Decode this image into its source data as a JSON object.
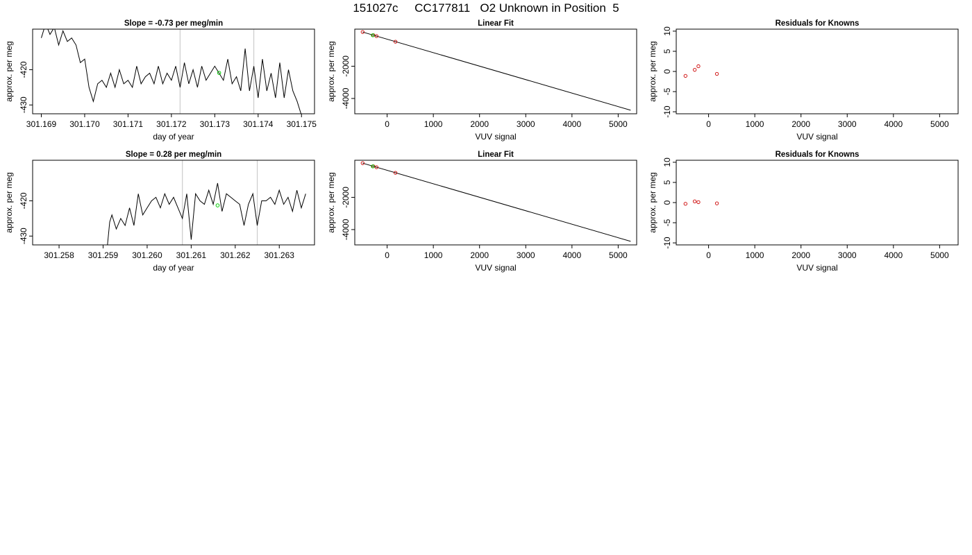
{
  "title": "151027c     CC177811   O2 Unknown in Position  5",
  "colors": {
    "line": "#000000",
    "known": "#cc0000",
    "unknown": "#00cc00",
    "marker": "#cccccc"
  },
  "chart_data": [
    {
      "id": "ts1",
      "type": "line",
      "title": "Slope =  -0.73  per meg/min",
      "xlabel": "day of year",
      "ylabel": "approx. per meg",
      "xlim": [
        301.1688,
        301.1753
      ],
      "ylim": [
        -432.5,
        -408.5
      ],
      "xticks": [
        301.169,
        301.17,
        301.171,
        301.172,
        301.173,
        301.174,
        301.175
      ],
      "xtick_labels": [
        "301.169",
        "301.170",
        "301.171",
        "301.172",
        "301.173",
        "301.174",
        "301.175"
      ],
      "yticks": [
        -420,
        -430
      ],
      "ytick_labels": [
        "-420",
        "-430"
      ],
      "vlines": [
        301.1722,
        301.1739
      ],
      "highlight": {
        "x": 301.1731,
        "y": -420.9
      },
      "x": [
        301.169,
        301.1691,
        301.1692,
        301.1693,
        301.1694,
        301.1695,
        301.1696,
        301.1697,
        301.1698,
        301.1699,
        301.17,
        301.1701,
        301.1702,
        301.1703,
        301.1704,
        301.1705,
        301.1706,
        301.1707,
        301.1708,
        301.1709,
        301.171,
        301.1711,
        301.1712,
        301.1713,
        301.1714,
        301.1715,
        301.1716,
        301.1717,
        301.1718,
        301.1719,
        301.172,
        301.1721,
        301.1722,
        301.1723,
        301.1724,
        301.1725,
        301.1726,
        301.1727,
        301.1728,
        301.1729,
        301.173,
        301.1731,
        301.1732,
        301.1733,
        301.1734,
        301.1735,
        301.1736,
        301.1737,
        301.1738,
        301.1739,
        301.174,
        301.1741,
        301.1742,
        301.1743,
        301.1744,
        301.1745,
        301.1746,
        301.1747,
        301.1748,
        301.1749,
        301.175
      ],
      "y": [
        -411,
        -407,
        -410,
        -408,
        -413,
        -409,
        -412,
        -411,
        -413,
        -418,
        -417,
        -425,
        -429,
        -424,
        -423,
        -425,
        -421,
        -425,
        -420,
        -424,
        -423,
        -425,
        -419,
        -424,
        -422,
        -421,
        -424,
        -419,
        -424,
        -421,
        -423,
        -419,
        -425,
        -418,
        -424,
        -420,
        -425,
        -419,
        -423,
        -421,
        -419,
        -421,
        -423,
        -417,
        -424,
        -422,
        -426,
        -414,
        -426,
        -419,
        -428,
        -417,
        -426,
        -421,
        -428,
        -418,
        -428,
        -420,
        -426,
        -429,
        -433
      ]
    },
    {
      "id": "fit1",
      "type": "scatter",
      "title": "Linear Fit",
      "xlabel": "VUV signal",
      "ylabel": "approx. per meg",
      "xlim": [
        -700,
        5400
      ],
      "ylim": [
        -4950,
        300
      ],
      "xticks": [
        0,
        1000,
        2000,
        3000,
        4000,
        5000
      ],
      "xtick_labels": [
        "0",
        "1000",
        "2000",
        "3000",
        "4000",
        "5000"
      ],
      "yticks": [
        -2000,
        -4000
      ],
      "ytick_labels": [
        "-2000",
        "-4000"
      ],
      "fit_line": {
        "x": [
          -530,
          5270
        ],
        "y": [
          120,
          -4730
        ]
      },
      "knowns": {
        "x": [
          -530,
          -300,
          -230,
          180
        ],
        "y": [
          120,
          -70,
          -130,
          -480
        ]
      },
      "unknowns": {
        "x": [
          -310
        ],
        "y": [
          -80
        ]
      }
    },
    {
      "id": "res1",
      "type": "scatter",
      "title": "Residuals for Knowns",
      "xlabel": "VUV signal",
      "ylabel": "approx. per meg",
      "xlim": [
        -700,
        5400
      ],
      "ylim": [
        -10.5,
        10.5
      ],
      "xticks": [
        0,
        1000,
        2000,
        3000,
        4000,
        5000
      ],
      "xtick_labels": [
        "0",
        "1000",
        "2000",
        "3000",
        "4000",
        "5000"
      ],
      "yticks": [
        10,
        5,
        0,
        -5,
        -10
      ],
      "ytick_labels": [
        "10",
        "5",
        "0",
        "-5",
        "-10"
      ],
      "knowns": {
        "x": [
          -500,
          -300,
          -220,
          180
        ],
        "y": [
          -1.1,
          0.4,
          1.3,
          -0.6
        ]
      }
    },
    {
      "id": "ts2",
      "type": "line",
      "title": "Slope =  0.28  per meg/min",
      "xlabel": "day of year",
      "ylabel": "approx. per meg",
      "xlim": [
        301.2574,
        301.2638
      ],
      "ylim": [
        -432.5,
        -408.5
      ],
      "xticks": [
        301.258,
        301.259,
        301.26,
        301.261,
        301.262,
        301.263
      ],
      "xtick_labels": [
        "301.258",
        "301.259",
        "301.260",
        "301.261",
        "301.262",
        "301.263"
      ],
      "yticks": [
        -420,
        -430
      ],
      "ytick_labels": [
        "-420",
        "-430"
      ],
      "vlines": [
        301.2608,
        301.2625
      ],
      "highlight": {
        "x": 301.2616,
        "y": -421.3
      },
      "x": [
        301.2574,
        301.2591,
        301.25915,
        301.2592,
        301.2593,
        301.2594,
        301.2595,
        301.2596,
        301.2597,
        301.2598,
        301.2599,
        301.26,
        301.2601,
        301.2602,
        301.2603,
        301.2604,
        301.2605,
        301.2606,
        301.2607,
        301.2608,
        301.2609,
        301.261,
        301.2611,
        301.2612,
        301.2613,
        301.2614,
        301.2615,
        301.2616,
        301.2617,
        301.2618,
        301.2619,
        301.262,
        301.2621,
        301.2622,
        301.2623,
        301.2624,
        301.2625,
        301.2626,
        301.2627,
        301.2628,
        301.2629,
        301.263,
        301.2631,
        301.2632,
        301.2633,
        301.2634,
        301.2635,
        301.2636
      ],
      "y": [
        -432.5,
        -432.5,
        -426,
        -424,
        -428,
        -425,
        -427,
        -422,
        -427,
        -418,
        -424,
        -422,
        -420,
        -419,
        -422,
        -418,
        -421,
        -419,
        -422,
        -425,
        -418,
        -431,
        -418,
        -420,
        -421,
        -417,
        -421,
        -415,
        -423,
        -418,
        -419,
        -420,
        -421,
        -427,
        -421,
        -418,
        -427,
        -420,
        -420,
        -419,
        -421,
        -417,
        -421,
        -419,
        -423,
        -417,
        -422,
        -418
      ]
    },
    {
      "id": "fit2",
      "type": "scatter",
      "title": "Linear Fit",
      "xlabel": "VUV signal",
      "ylabel": "approx. per meg",
      "xlim": [
        -700,
        5400
      ],
      "ylim": [
        -4950,
        300
      ],
      "xticks": [
        0,
        1000,
        2000,
        3000,
        4000,
        5000
      ],
      "xtick_labels": [
        "0",
        "1000",
        "2000",
        "3000",
        "4000",
        "5000"
      ],
      "yticks": [
        -2000,
        -4000
      ],
      "ytick_labels": [
        "-2000",
        "-4000"
      ],
      "fit_line": {
        "x": [
          -530,
          5270
        ],
        "y": [
          120,
          -4730
        ]
      },
      "knowns": {
        "x": [
          -530,
          -300,
          -230,
          180
        ],
        "y": [
          120,
          -70,
          -130,
          -480
        ]
      },
      "unknowns": {
        "x": [
          -310
        ],
        "y": [
          -80
        ]
      }
    },
    {
      "id": "res2",
      "type": "scatter",
      "title": "Residuals for Knowns",
      "xlabel": "VUV signal",
      "ylabel": "approx. per meg",
      "xlim": [
        -700,
        5400
      ],
      "ylim": [
        -10.5,
        10.5
      ],
      "xticks": [
        0,
        1000,
        2000,
        3000,
        4000,
        5000
      ],
      "xtick_labels": [
        "0",
        "1000",
        "2000",
        "3000",
        "4000",
        "5000"
      ],
      "yticks": [
        10,
        5,
        0,
        -5,
        -10
      ],
      "ytick_labels": [
        "10",
        "5",
        "0",
        "-5",
        "-10"
      ],
      "knowns": {
        "x": [
          -500,
          -300,
          -220,
          180
        ],
        "y": [
          -0.3,
          0.3,
          0.1,
          -0.2
        ]
      }
    }
  ]
}
